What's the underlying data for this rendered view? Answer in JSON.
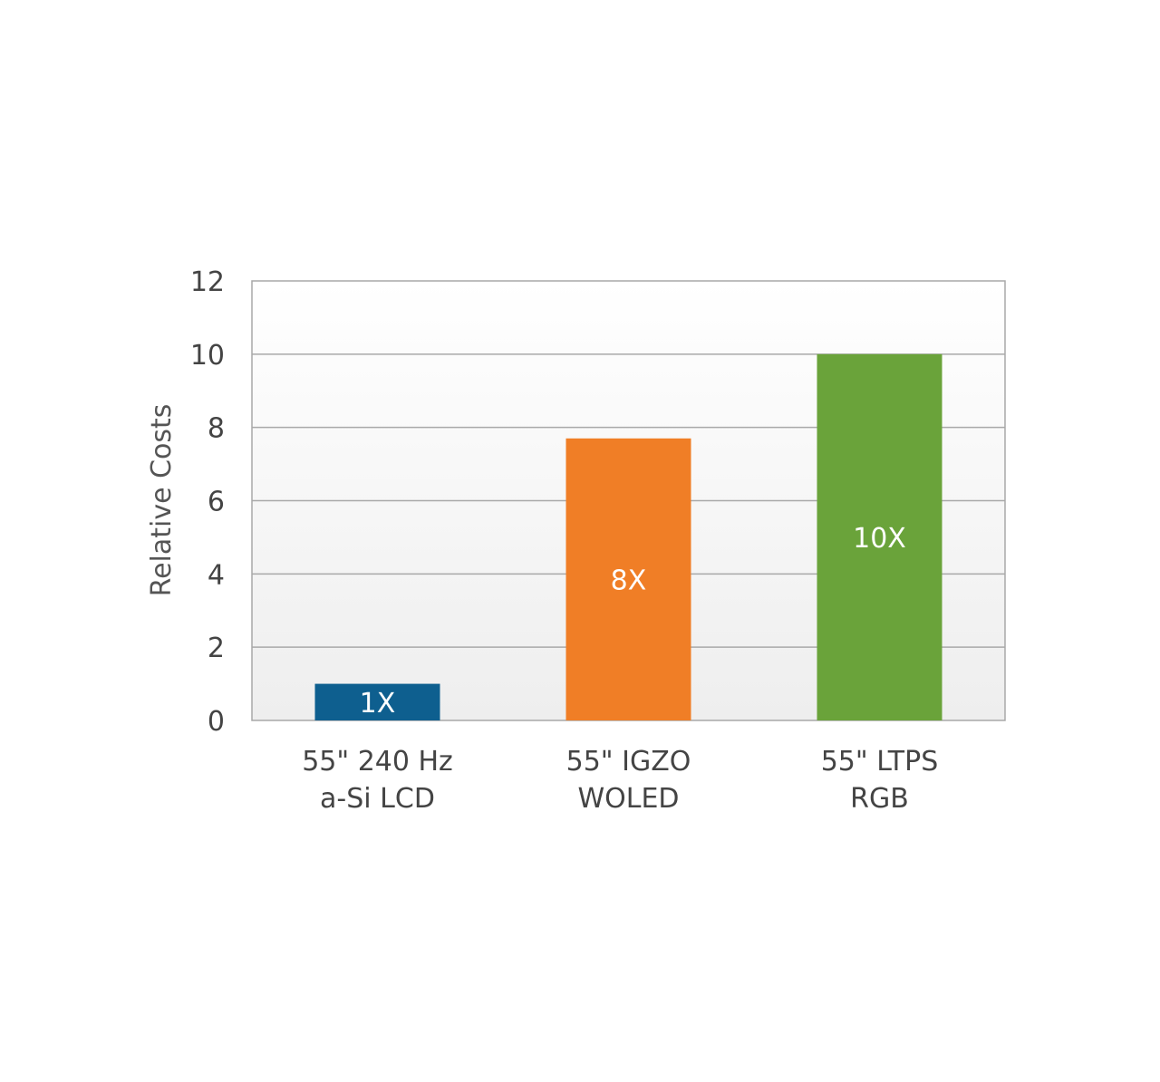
{
  "chart_data": {
    "type": "bar",
    "title": "",
    "xlabel": "",
    "ylabel": "Relative Costs",
    "ylim": [
      0,
      12
    ],
    "yticks": [
      0,
      2,
      4,
      6,
      8,
      10,
      12
    ],
    "grid": true,
    "legend": "none",
    "categories": [
      [
        "55\" 240 Hz",
        "a-Si LCD"
      ],
      [
        "55\" IGZO",
        "WOLED"
      ],
      [
        "55\" LTPS",
        "RGB"
      ]
    ],
    "values": [
      1,
      7.7,
      10
    ],
    "data_labels": [
      "1X",
      "8X",
      "10X"
    ],
    "colors": [
      "#0e5f8f",
      "#f07e26",
      "#6aa33a"
    ]
  }
}
